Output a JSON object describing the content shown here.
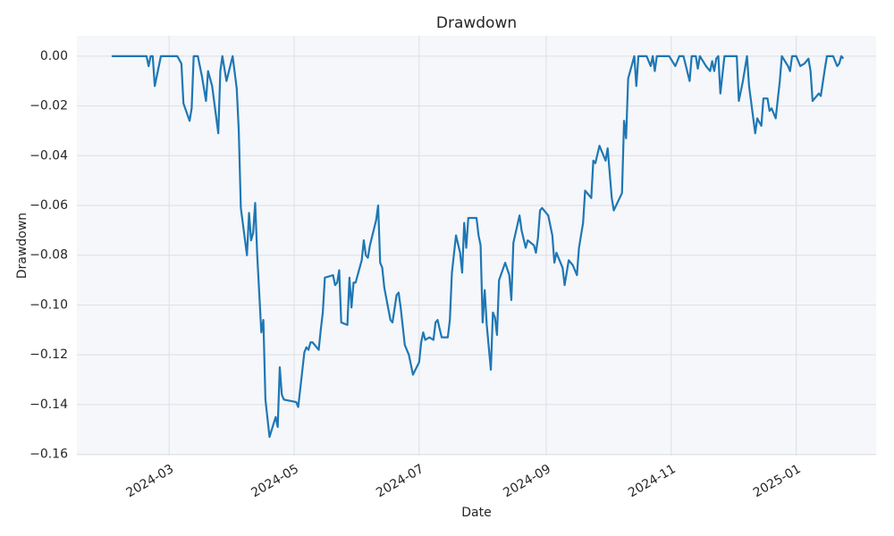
{
  "chart_data": {
    "type": "line",
    "title": "Drawdown",
    "x_label": "Date",
    "y_label": "Drawdown",
    "x": [
      "2024-02-02",
      "2024-02-19",
      "2024-02-20",
      "2024-02-21",
      "2024-02-22",
      "2024-02-23",
      "2024-02-26",
      "2024-03-05",
      "2024-03-07",
      "2024-03-08",
      "2024-03-11",
      "2024-03-12",
      "2024-03-13",
      "2024-03-15",
      "2024-03-17",
      "2024-03-19",
      "2024-03-20",
      "2024-03-22",
      "2024-03-25",
      "2024-03-26",
      "2024-03-27",
      "2024-03-29",
      "2024-04-01",
      "2024-04-03",
      "2024-04-04",
      "2024-04-05",
      "2024-04-08",
      "2024-04-09",
      "2024-04-10",
      "2024-04-11",
      "2024-04-12",
      "2024-04-13",
      "2024-04-15",
      "2024-04-16",
      "2024-04-17",
      "2024-04-19",
      "2024-04-22",
      "2024-04-23",
      "2024-04-24",
      "2024-04-25",
      "2024-04-26",
      "2024-05-02",
      "2024-05-03",
      "2024-05-06",
      "2024-05-07",
      "2024-05-08",
      "2024-05-09",
      "2024-05-10",
      "2024-05-13",
      "2024-05-14",
      "2024-05-15",
      "2024-05-16",
      "2024-05-20",
      "2024-05-21",
      "2024-05-22",
      "2024-05-23",
      "2024-05-24",
      "2024-05-27",
      "2024-05-28",
      "2024-05-29",
      "2024-05-30",
      "2024-05-31",
      "2024-06-03",
      "2024-06-04",
      "2024-06-05",
      "2024-06-06",
      "2024-06-07",
      "2024-06-10",
      "2024-06-11",
      "2024-06-12",
      "2024-06-13",
      "2024-06-14",
      "2024-06-17",
      "2024-06-18",
      "2024-06-20",
      "2024-06-21",
      "2024-06-22",
      "2024-06-24",
      "2024-06-26",
      "2024-06-28",
      "2024-07-01",
      "2024-07-02",
      "2024-07-03",
      "2024-07-04",
      "2024-07-06",
      "2024-07-08",
      "2024-07-09",
      "2024-07-10",
      "2024-07-12",
      "2024-07-15",
      "2024-07-16",
      "2024-07-17",
      "2024-07-19",
      "2024-07-21",
      "2024-07-22",
      "2024-07-23",
      "2024-07-24",
      "2024-07-25",
      "2024-07-29",
      "2024-07-30",
      "2024-07-31",
      "2024-08-01",
      "2024-08-02",
      "2024-08-03",
      "2024-08-05",
      "2024-08-06",
      "2024-08-07",
      "2024-08-08",
      "2024-08-09",
      "2024-08-12",
      "2024-08-14",
      "2024-08-15",
      "2024-08-16",
      "2024-08-19",
      "2024-08-20",
      "2024-08-22",
      "2024-08-23",
      "2024-08-26",
      "2024-08-27",
      "2024-08-28",
      "2024-08-29",
      "2024-08-30",
      "2024-09-02",
      "2024-09-04",
      "2024-09-05",
      "2024-09-06",
      "2024-09-09",
      "2024-09-10",
      "2024-09-12",
      "2024-09-14",
      "2024-09-16",
      "2024-09-17",
      "2024-09-19",
      "2024-09-20",
      "2024-09-23",
      "2024-09-24",
      "2024-09-25",
      "2024-09-27",
      "2024-09-30",
      "2024-10-01",
      "2024-10-03",
      "2024-10-04",
      "2024-10-08",
      "2024-10-09",
      "2024-10-10",
      "2024-10-11",
      "2024-10-14",
      "2024-10-15",
      "2024-10-16",
      "2024-10-20",
      "2024-10-22",
      "2024-10-23",
      "2024-10-24",
      "2024-10-25",
      "2024-10-31",
      "2024-11-03",
      "2024-11-05",
      "2024-11-07",
      "2024-11-10",
      "2024-11-11",
      "2024-11-13",
      "2024-11-14",
      "2024-11-15",
      "2024-11-18",
      "2024-11-20",
      "2024-11-21",
      "2024-11-22",
      "2024-11-23",
      "2024-11-24",
      "2024-11-25",
      "2024-11-27",
      "2024-12-03",
      "2024-12-04",
      "2024-12-06",
      "2024-12-08",
      "2024-12-09",
      "2024-12-12",
      "2024-12-13",
      "2024-12-15",
      "2024-12-16",
      "2024-12-18",
      "2024-12-19",
      "2024-12-20",
      "2024-12-21",
      "2024-12-22",
      "2024-12-24",
      "2024-12-25",
      "2024-12-28",
      "2024-12-29",
      "2024-12-30",
      "2025-01-01",
      "2025-01-03",
      "2025-01-05",
      "2025-01-07",
      "2025-01-08",
      "2025-01-09",
      "2025-01-12",
      "2025-01-13",
      "2025-01-15",
      "2025-01-16",
      "2025-01-19",
      "2025-01-21",
      "2025-01-22",
      "2025-01-23",
      "2025-01-24"
    ],
    "series": [
      {
        "name": "Drawdown",
        "color": "#1f77b4",
        "values": [
          0,
          0,
          -0.004,
          0,
          0,
          -0.012,
          0,
          0,
          -0.003,
          -0.019,
          -0.026,
          -0.021,
          0,
          0,
          -0.008,
          -0.018,
          -0.006,
          -0.012,
          -0.031,
          -0.006,
          0,
          -0.01,
          0,
          -0.013,
          -0.03,
          -0.061,
          -0.08,
          -0.063,
          -0.074,
          -0.071,
          -0.059,
          -0.08,
          -0.111,
          -0.106,
          -0.138,
          -0.153,
          -0.145,
          -0.149,
          -0.125,
          -0.136,
          -0.138,
          -0.139,
          -0.141,
          -0.119,
          -0.117,
          -0.118,
          -0.115,
          -0.115,
          -0.118,
          -0.11,
          -0.103,
          -0.089,
          -0.088,
          -0.092,
          -0.091,
          -0.086,
          -0.107,
          -0.108,
          -0.089,
          -0.101,
          -0.091,
          -0.091,
          -0.082,
          -0.074,
          -0.08,
          -0.081,
          -0.076,
          -0.066,
          -0.06,
          -0.083,
          -0.085,
          -0.093,
          -0.106,
          -0.107,
          -0.096,
          -0.095,
          -0.101,
          -0.116,
          -0.12,
          -0.128,
          -0.123,
          -0.115,
          -0.111,
          -0.114,
          -0.113,
          -0.114,
          -0.107,
          -0.106,
          -0.113,
          -0.113,
          -0.106,
          -0.087,
          -0.072,
          -0.079,
          -0.087,
          -0.067,
          -0.077,
          -0.065,
          -0.065,
          -0.072,
          -0.076,
          -0.107,
          -0.094,
          -0.108,
          -0.126,
          -0.103,
          -0.105,
          -0.112,
          -0.09,
          -0.083,
          -0.088,
          -0.098,
          -0.075,
          -0.064,
          -0.07,
          -0.077,
          -0.074,
          -0.076,
          -0.079,
          -0.073,
          -0.062,
          -0.061,
          -0.064,
          -0.072,
          -0.083,
          -0.079,
          -0.085,
          -0.092,
          -0.082,
          -0.084,
          -0.088,
          -0.077,
          -0.067,
          -0.054,
          -0.057,
          -0.042,
          -0.043,
          -0.036,
          -0.042,
          -0.037,
          -0.057,
          -0.062,
          -0.055,
          -0.026,
          -0.033,
          -0.009,
          0,
          -0.012,
          0,
          0,
          -0.004,
          0,
          -0.006,
          0,
          0,
          -0.004,
          0,
          0,
          -0.01,
          0,
          0,
          -0.005,
          0,
          -0.004,
          -0.006,
          -0.002,
          -0.006,
          -0.001,
          0,
          -0.015,
          0,
          0,
          -0.018,
          -0.01,
          0,
          -0.012,
          -0.031,
          -0.025,
          -0.028,
          -0.017,
          -0.017,
          -0.022,
          -0.021,
          -0.023,
          -0.025,
          -0.01,
          0,
          -0.004,
          -0.006,
          0,
          0,
          -0.004,
          -0.003,
          -0.001,
          -0.006,
          -0.018,
          -0.015,
          -0.016,
          -0.005,
          0,
          0,
          -0.004,
          -0.003,
          0,
          -0.001
        ]
      }
    ],
    "xlim": [
      "2024-01-16",
      "2025-02-09"
    ],
    "xticks": [
      {
        "value": "2024-03-01",
        "label": "2024-03"
      },
      {
        "value": "2024-05-01",
        "label": "2024-05"
      },
      {
        "value": "2024-07-01",
        "label": "2024-07"
      },
      {
        "value": "2024-09-01",
        "label": "2024-09"
      },
      {
        "value": "2024-11-01",
        "label": "2024-11"
      },
      {
        "value": "2025-01-01",
        "label": "2025-01"
      }
    ],
    "ylim": [
      -0.1605,
      0.0082
    ],
    "yticks": [
      {
        "value": 0,
        "label": "0.00"
      },
      {
        "value": -0.02,
        "label": "−0.02"
      },
      {
        "value": -0.04,
        "label": "−0.04"
      },
      {
        "value": -0.06,
        "label": "−0.06"
      },
      {
        "value": -0.08,
        "label": "−0.08"
      },
      {
        "value": -0.1,
        "label": "−0.10"
      },
      {
        "value": -0.12,
        "label": "−0.12"
      },
      {
        "value": -0.14,
        "label": "−0.14"
      },
      {
        "value": -0.16,
        "label": "−0.16"
      }
    ],
    "grid": true
  }
}
